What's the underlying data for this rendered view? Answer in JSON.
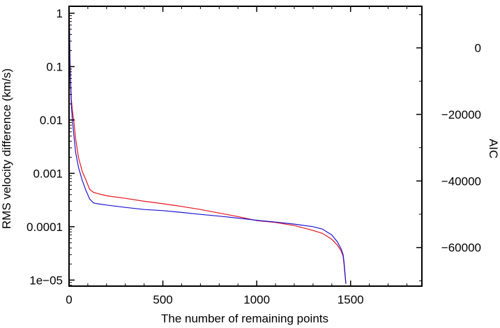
{
  "chart_data": {
    "type": "line",
    "title": "",
    "xlabel": "The number of remaining points",
    "ylabel": "RMS velocity difference (km/s)",
    "y2label": "AIC",
    "xlim": [
      0,
      1880
    ],
    "ylim": [
      7.7e-06,
      1.35
    ],
    "yscale": "log",
    "y2lim": [
      -71600,
      12500
    ],
    "xticks": [
      0,
      500,
      1000,
      1500
    ],
    "xtick_labels": [
      "0",
      "500",
      "1000",
      "1500"
    ],
    "yticks": [
      1,
      0.1,
      0.01,
      0.001,
      0.0001,
      1e-05
    ],
    "ytick_labels": [
      "1",
      "0.1",
      "0.01",
      "0.001",
      "0.0001",
      "1e−05"
    ],
    "y2ticks": [
      0,
      -20000,
      -40000,
      -60000
    ],
    "y2tick_labels": [
      "0",
      "−20000",
      "−40000",
      "−60000"
    ],
    "grid": false,
    "series": [
      {
        "axis": "left",
        "color": "#e8141e",
        "x": [
          1,
          3,
          5,
          8,
          12,
          18,
          25,
          35,
          50,
          70,
          90,
          110,
          130,
          150,
          200,
          300,
          400,
          500,
          600,
          700,
          800,
          900,
          1000,
          1100,
          1200,
          1300,
          1350,
          1400,
          1430,
          1450,
          1460,
          1465,
          1470,
          1475
        ],
        "y": [
          1.0,
          0.4,
          0.15,
          0.06,
          0.025,
          0.015,
          0.01,
          0.0045,
          0.002,
          0.0011,
          0.00075,
          0.0005,
          0.00044,
          0.00042,
          0.00038,
          0.00034,
          0.0003,
          0.00027,
          0.00024,
          0.00021,
          0.00018,
          0.000155,
          0.00013,
          0.00012,
          0.000105,
          8.5e-05,
          7.5e-05,
          5.8e-05,
          4.5e-05,
          3.5e-05,
          2.8e-05,
          2e-05,
          1.3e-05,
          8.5e-06
        ]
      },
      {
        "axis": "left",
        "color": "#1e14d2",
        "x": [
          1,
          3,
          5,
          8,
          12,
          18,
          25,
          35,
          50,
          70,
          90,
          110,
          130,
          150,
          200,
          300,
          400,
          500,
          600,
          700,
          800,
          900,
          1000,
          1100,
          1200,
          1300,
          1350,
          1400,
          1430,
          1450,
          1460,
          1465,
          1470,
          1475
        ],
        "y": [
          1.0,
          0.35,
          0.12,
          0.045,
          0.02,
          0.01,
          0.0055,
          0.0025,
          0.0013,
          0.00075,
          0.00048,
          0.00033,
          0.00028,
          0.00027,
          0.000255,
          0.00023,
          0.00021,
          0.0002,
          0.000185,
          0.00017,
          0.000158,
          0.000145,
          0.000132,
          0.000122,
          0.000112,
          0.0001,
          9e-05,
          7e-05,
          5.2e-05,
          3.8e-05,
          3e-05,
          2.2e-05,
          1.4e-05,
          8.5e-06
        ]
      }
    ]
  }
}
